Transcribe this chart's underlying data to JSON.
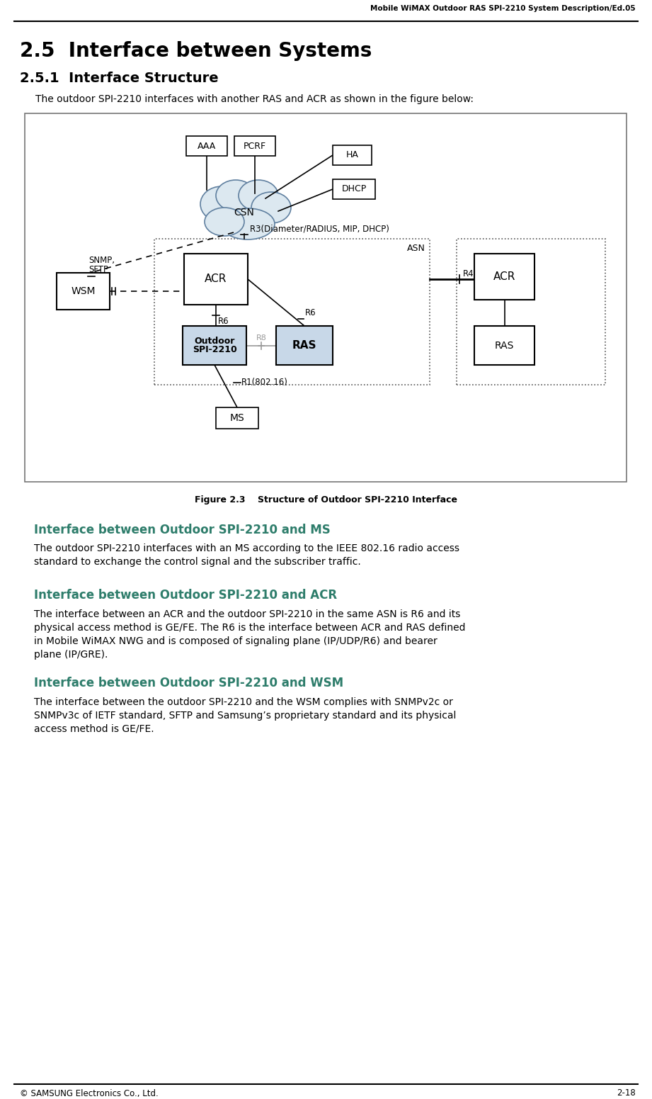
{
  "header_text": "Mobile WiMAX Outdoor RAS SPI-2210 System Description/Ed.05",
  "footer_left": "© SAMSUNG Electronics Co., Ltd.",
  "footer_right": "2-18",
  "title_section": "2.5  Interface between Systems",
  "subtitle_section": "2.5.1  Interface Structure",
  "intro_text": "The outdoor SPI-2210 interfaces with another RAS and ACR as shown in the figure below:",
  "figure_caption": "Figure 2.3    Structure of Outdoor SPI-2210 Interface",
  "heading1": "Interface between Outdoor SPI-2210 and MS",
  "body1_l1": "The outdoor SPI-2210 interfaces with an MS according to the IEEE 802.16 radio access",
  "body1_l2": "standard to exchange the control signal and the subscriber traffic.",
  "heading2": "Interface between Outdoor SPI-2210 and ACR",
  "body2_l1": "The interface between an ACR and the outdoor SPI-2210 in the same ASN is R6 and its",
  "body2_l2": "physical access method is GE/FE. The R6 is the interface between ACR and RAS defined",
  "body2_l3": "in Mobile WiMAX NWG and is composed of signaling plane (IP/UDP/R6) and bearer",
  "body2_l4": "plane (IP/GRE).",
  "heading3": "Interface between Outdoor SPI-2210 and WSM",
  "body3_l1": "The interface between the outdoor SPI-2210 and the WSM complies with SNMPv2c or",
  "body3_l2": "SNMPv3c of IETF standard, SFTP and Samsung’s proprietary standard and its physical",
  "body3_l3": "access method is GE/FE.",
  "heading_color": "#2E7D6B",
  "bg_color": "#ffffff",
  "box_fill_light_blue": "#c8d8e8"
}
